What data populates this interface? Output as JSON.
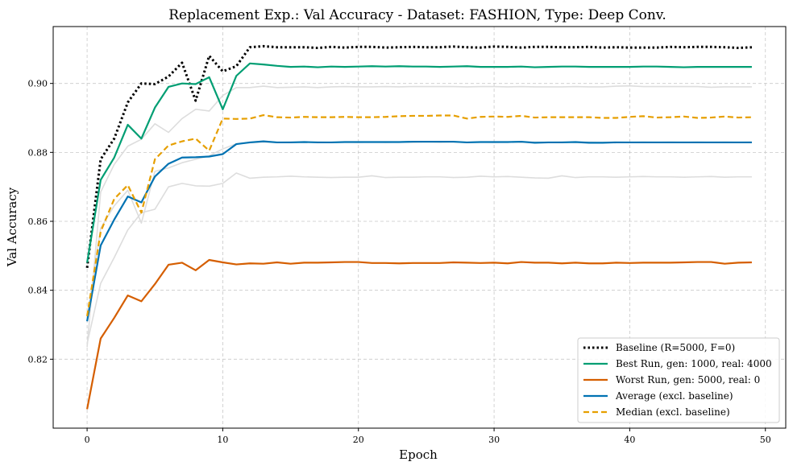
{
  "chart_data": {
    "type": "line",
    "title": "Replacement Exp.: Val Accuracy - Dataset: FASHION, Type: Deep Conv.",
    "xlabel": "Epoch",
    "ylabel": "Val Accuracy",
    "xlim": [
      -2.5,
      51.5
    ],
    "ylim": [
      0.8,
      0.9165
    ],
    "xticks": [
      0,
      10,
      20,
      30,
      40,
      50
    ],
    "yticks": [
      0.82,
      0.84,
      0.86,
      0.88,
      0.9
    ],
    "ytick_labels": [
      "0.82",
      "0.84",
      "0.86",
      "0.88",
      "0.90"
    ],
    "grid": true,
    "legend_position": "lower-right",
    "x": [
      0,
      1,
      2,
      3,
      4,
      5,
      6,
      7,
      8,
      9,
      10,
      11,
      12,
      13,
      14,
      15,
      16,
      17,
      18,
      19,
      20,
      21,
      22,
      23,
      24,
      25,
      26,
      27,
      28,
      29,
      30,
      31,
      32,
      33,
      34,
      35,
      36,
      37,
      38,
      39,
      40,
      41,
      42,
      43,
      44,
      45,
      46,
      47,
      48,
      49
    ],
    "background_series": [
      {
        "color": "#dddddd",
        "values": [
          0.8235,
          0.8685,
          0.8765,
          0.8818,
          0.8838,
          0.8883,
          0.8858,
          0.8898,
          0.8925,
          0.892,
          0.8965,
          0.8988,
          0.8988,
          0.8992,
          0.8988,
          0.8989,
          0.899,
          0.8988,
          0.899,
          0.8991,
          0.899,
          0.899,
          0.8991,
          0.899,
          0.8991,
          0.8991,
          0.8991,
          0.8991,
          0.899,
          0.8991,
          0.8991,
          0.899,
          0.8991,
          0.899,
          0.899,
          0.899,
          0.8991,
          0.899,
          0.899,
          0.8992,
          0.8993,
          0.8991,
          0.8991,
          0.8991,
          0.8991,
          0.8991,
          0.8989,
          0.899,
          0.899,
          0.899
        ]
      },
      {
        "color": "#dddddd",
        "values": [
          0.8245,
          0.842,
          0.8495,
          0.8575,
          0.8625,
          0.8635,
          0.87,
          0.871,
          0.8703,
          0.8702,
          0.871,
          0.874,
          0.8725,
          0.8728,
          0.8729,
          0.8731,
          0.8729,
          0.8728,
          0.8727,
          0.8728,
          0.8728,
          0.8732,
          0.8727,
          0.8728,
          0.8728,
          0.8729,
          0.8729,
          0.8727,
          0.8728,
          0.8731,
          0.8729,
          0.873,
          0.8728,
          0.8726,
          0.8725,
          0.8732,
          0.8727,
          0.8729,
          0.8729,
          0.8728,
          0.8729,
          0.873,
          0.8729,
          0.8729,
          0.8728,
          0.8729,
          0.873,
          0.8728,
          0.8729,
          0.8729
        ]
      },
      {
        "color": "#dddddd",
        "values": [
          0.832,
          0.858,
          0.8645,
          0.869,
          0.8595,
          0.8745,
          0.8755,
          0.877,
          0.878,
          0.879,
          0.881,
          0.8825,
          0.8828,
          0.883,
          0.8829,
          0.883,
          0.8829,
          0.883,
          0.8829,
          0.883,
          0.8829,
          0.883,
          0.8829,
          0.883,
          0.8829,
          0.883,
          0.8829,
          0.883,
          0.8829,
          0.883,
          0.8829,
          0.883,
          0.8829,
          0.883,
          0.8829,
          0.883,
          0.8829,
          0.883,
          0.8829,
          0.883,
          0.8829,
          0.883,
          0.8829,
          0.883,
          0.8829,
          0.883,
          0.8829,
          0.883,
          0.8829,
          0.883
        ]
      }
    ],
    "series": [
      {
        "name": "Baseline (R=5000, F=0)",
        "color": "#000000",
        "style": "dotted",
        "width": 3,
        "values": [
          0.8465,
          0.878,
          0.884,
          0.8945,
          0.9,
          0.8998,
          0.902,
          0.906,
          0.895,
          0.908,
          0.9035,
          0.905,
          0.9105,
          0.9108,
          0.9105,
          0.9105,
          0.9105,
          0.9103,
          0.9106,
          0.9104,
          0.9106,
          0.9106,
          0.9104,
          0.9105,
          0.9106,
          0.9105,
          0.9105,
          0.9107,
          0.9105,
          0.9104,
          0.9107,
          0.9106,
          0.9104,
          0.9106,
          0.9106,
          0.9105,
          0.9105,
          0.9106,
          0.9104,
          0.9105,
          0.9104,
          0.9104,
          0.9104,
          0.9106,
          0.9105,
          0.9106,
          0.9106,
          0.9105,
          0.9103,
          0.9105
        ]
      },
      {
        "name": "Best Run, gen: 1000, real: 4000",
        "color": "#009e73",
        "style": "solid",
        "width": 2.2,
        "values": [
          0.848,
          0.872,
          0.8785,
          0.888,
          0.884,
          0.893,
          0.899,
          0.9,
          0.8998,
          0.9018,
          0.8925,
          0.9022,
          0.9058,
          0.9055,
          0.9051,
          0.9048,
          0.9049,
          0.9047,
          0.9049,
          0.9048,
          0.9049,
          0.905,
          0.9049,
          0.905,
          0.9049,
          0.9049,
          0.9048,
          0.9049,
          0.905,
          0.9048,
          0.9048,
          0.9048,
          0.9049,
          0.9047,
          0.9048,
          0.9049,
          0.9049,
          0.9048,
          0.9048,
          0.9048,
          0.9048,
          0.9049,
          0.9049,
          0.9048,
          0.9047,
          0.9048,
          0.9048,
          0.9048,
          0.9048,
          0.9048
        ]
      },
      {
        "name": "Worst Run, gen: 5000, real: 0",
        "color": "#d55e00",
        "style": "solid",
        "width": 2.2,
        "values": [
          0.8055,
          0.826,
          0.832,
          0.8385,
          0.8368,
          0.8418,
          0.8474,
          0.848,
          0.8458,
          0.8488,
          0.8481,
          0.8475,
          0.8478,
          0.8477,
          0.8481,
          0.8477,
          0.848,
          0.848,
          0.8481,
          0.8482,
          0.8482,
          0.8479,
          0.8479,
          0.8478,
          0.8479,
          0.8479,
          0.8479,
          0.8481,
          0.848,
          0.8479,
          0.848,
          0.8478,
          0.8482,
          0.848,
          0.848,
          0.8478,
          0.848,
          0.8478,
          0.8478,
          0.848,
          0.8479,
          0.848,
          0.848,
          0.848,
          0.8481,
          0.8482,
          0.8482,
          0.8477,
          0.848,
          0.8481
        ]
      },
      {
        "name": "Average (excl. baseline)",
        "color": "#0072b2",
        "style": "solid",
        "width": 2.2,
        "values": [
          0.831,
          0.853,
          0.8605,
          0.8672,
          0.8655,
          0.873,
          0.8767,
          0.8785,
          0.8786,
          0.8788,
          0.8795,
          0.8824,
          0.8829,
          0.8832,
          0.8829,
          0.8829,
          0.883,
          0.8829,
          0.8829,
          0.883,
          0.883,
          0.883,
          0.883,
          0.883,
          0.8831,
          0.8831,
          0.8831,
          0.8831,
          0.8829,
          0.883,
          0.883,
          0.883,
          0.8831,
          0.8828,
          0.8829,
          0.8829,
          0.883,
          0.8828,
          0.8828,
          0.8829,
          0.8829,
          0.8829,
          0.8829,
          0.8829,
          0.8829,
          0.8829,
          0.8829,
          0.8829,
          0.8829,
          0.8829
        ]
      },
      {
        "name": "Median (excl. baseline)",
        "color": "#e69f00",
        "style": "dashed",
        "width": 2.2,
        "values": [
          0.8325,
          0.857,
          0.8665,
          0.8705,
          0.8625,
          0.878,
          0.882,
          0.8832,
          0.884,
          0.8805,
          0.8898,
          0.8897,
          0.8898,
          0.8908,
          0.8902,
          0.8901,
          0.8903,
          0.8902,
          0.8902,
          0.8903,
          0.8902,
          0.8902,
          0.8903,
          0.8905,
          0.8906,
          0.8906,
          0.8907,
          0.8907,
          0.8898,
          0.8903,
          0.8904,
          0.8903,
          0.8906,
          0.8901,
          0.8902,
          0.8902,
          0.8902,
          0.8902,
          0.89,
          0.89,
          0.8903,
          0.8905,
          0.8901,
          0.8902,
          0.8904,
          0.89,
          0.8901,
          0.8904,
          0.8901,
          0.8902
        ]
      }
    ]
  }
}
